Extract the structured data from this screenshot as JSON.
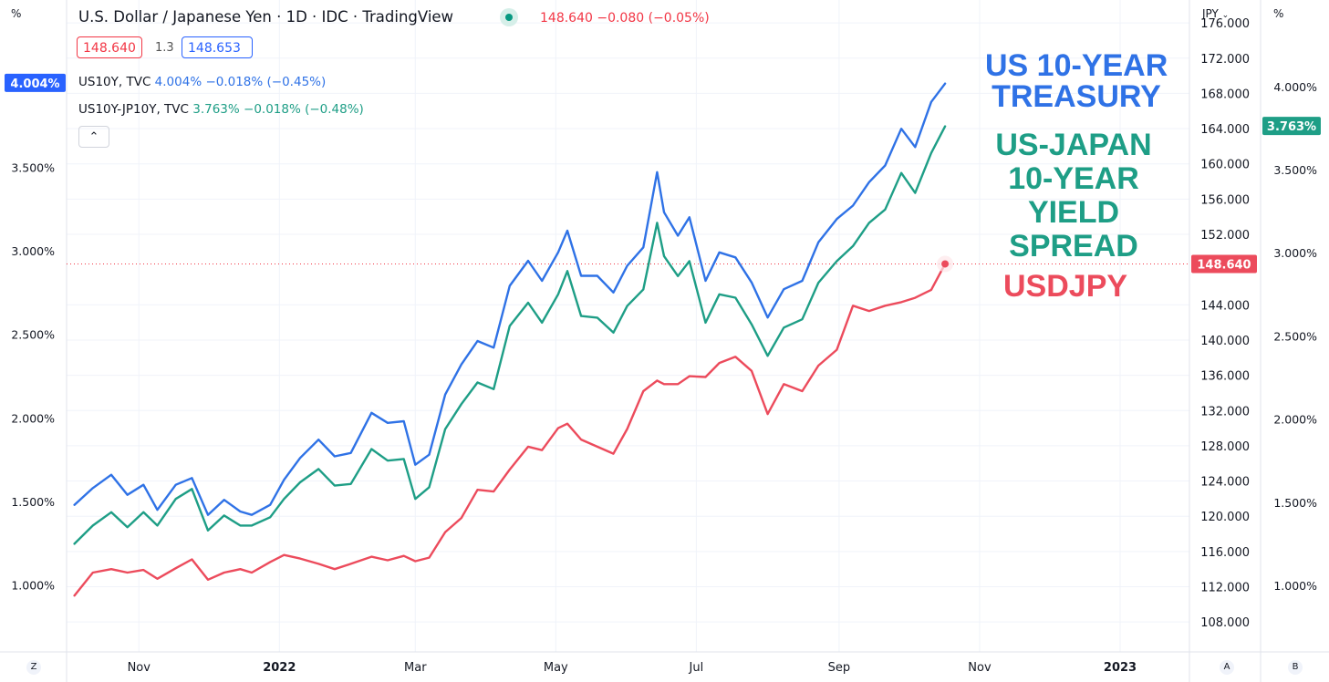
{
  "header": {
    "title": "U.S. Dollar / Japanese Yen · 1D · IDC · TradingView",
    "quote": "148.640  −0.080 (−0.05%)",
    "bid": "148.640",
    "spread": "1.3",
    "ask": "148.653",
    "collapse_glyph": "⌃"
  },
  "symbols": [
    {
      "name": "US10Y, TVC",
      "quote": "4.004%  −0.018% (−0.45%)",
      "color": "#2f72e6"
    },
    {
      "name": "US10Y-JP10Y, TVC",
      "quote": "3.763%  −0.018% (−0.48%)",
      "color": "#1e9e86"
    }
  ],
  "annotations": {
    "us10y_line1": "US 10-YEAR",
    "us10y_line2": "TREASURY",
    "spread_line1": "US-JAPAN",
    "spread_line2": "10-YEAR",
    "spread_line3": "YIELD",
    "spread_line4": "SPREAD",
    "usdjpy": "USDJPY"
  },
  "corners": {
    "top_left": "%",
    "top_right": "%",
    "jpy_label": "JPY",
    "z_button": "Z",
    "a_button": "A",
    "b_button": "B"
  },
  "chart_data": {
    "type": "line",
    "x_axis": {
      "ticks": [
        "Nov",
        "2022",
        "Mar",
        "May",
        "Jul",
        "Sep",
        "Nov",
        "2023"
      ]
    },
    "left_axis": {
      "label": "%",
      "ticks": [
        "1.000%",
        "1.500%",
        "2.000%",
        "2.500%",
        "3.000%",
        "3.500%"
      ],
      "ylim": [
        0.6,
        4.5
      ],
      "badge": "4.004%"
    },
    "middle_axis": {
      "label": "JPY",
      "ticks": [
        "108.000",
        "112.000",
        "116.000",
        "120.000",
        "124.000",
        "128.000",
        "132.000",
        "136.000",
        "140.000",
        "144.000",
        "152.000",
        "156.000",
        "160.000",
        "164.000",
        "168.000",
        "172.000",
        "176.000"
      ],
      "ylim": [
        104.6,
        178.6
      ],
      "badge": "148.640",
      "price_line": 148.64
    },
    "right_axis": {
      "label": "%",
      "ticks": [
        "1.000%",
        "1.500%",
        "2.000%",
        "2.500%",
        "3.000%",
        "3.500%",
        "4.000%"
      ],
      "ylim": [
        0.6,
        4.52
      ],
      "badge": "3.763%"
    },
    "series": [
      {
        "name": "US10Y, TVC",
        "axis": "left",
        "color": "#2f72e6",
        "points": [
          [
            "2021-10-04",
            1.48
          ],
          [
            "2021-10-12",
            1.58
          ],
          [
            "2021-10-20",
            1.66
          ],
          [
            "2021-10-27",
            1.54
          ],
          [
            "2021-11-03",
            1.6
          ],
          [
            "2021-11-09",
            1.45
          ],
          [
            "2021-11-17",
            1.6
          ],
          [
            "2021-11-24",
            1.64
          ],
          [
            "2021-12-01",
            1.42
          ],
          [
            "2021-12-08",
            1.51
          ],
          [
            "2021-12-15",
            1.44
          ],
          [
            "2021-12-20",
            1.42
          ],
          [
            "2021-12-28",
            1.48
          ],
          [
            "2022-01-03",
            1.63
          ],
          [
            "2022-01-10",
            1.76
          ],
          [
            "2022-01-18",
            1.87
          ],
          [
            "2022-01-25",
            1.77
          ],
          [
            "2022-02-01",
            1.79
          ],
          [
            "2022-02-10",
            2.03
          ],
          [
            "2022-02-17",
            1.97
          ],
          [
            "2022-02-24",
            1.98
          ],
          [
            "2022-03-01",
            1.72
          ],
          [
            "2022-03-07",
            1.78
          ],
          [
            "2022-03-14",
            2.14
          ],
          [
            "2022-03-21",
            2.32
          ],
          [
            "2022-03-28",
            2.46
          ],
          [
            "2022-04-04",
            2.42
          ],
          [
            "2022-04-11",
            2.79
          ],
          [
            "2022-04-19",
            2.94
          ],
          [
            "2022-04-25",
            2.82
          ],
          [
            "2022-05-02",
            2.99
          ],
          [
            "2022-05-06",
            3.12
          ],
          [
            "2022-05-12",
            2.85
          ],
          [
            "2022-05-19",
            2.85
          ],
          [
            "2022-05-26",
            2.75
          ],
          [
            "2022-06-01",
            2.91
          ],
          [
            "2022-06-08",
            3.02
          ],
          [
            "2022-06-14",
            3.47
          ],
          [
            "2022-06-17",
            3.23
          ],
          [
            "2022-06-23",
            3.09
          ],
          [
            "2022-06-28",
            3.2
          ],
          [
            "2022-07-05",
            2.82
          ],
          [
            "2022-07-11",
            2.99
          ],
          [
            "2022-07-18",
            2.96
          ],
          [
            "2022-07-25",
            2.81
          ],
          [
            "2022-08-01",
            2.6
          ],
          [
            "2022-08-08",
            2.77
          ],
          [
            "2022-08-16",
            2.82
          ],
          [
            "2022-08-23",
            3.05
          ],
          [
            "2022-08-31",
            3.19
          ],
          [
            "2022-09-07",
            3.27
          ],
          [
            "2022-09-14",
            3.41
          ],
          [
            "2022-09-21",
            3.51
          ],
          [
            "2022-09-28",
            3.73
          ],
          [
            "2022-10-04",
            3.62
          ],
          [
            "2022-10-11",
            3.89
          ],
          [
            "2022-10-17",
            4.0
          ]
        ]
      },
      {
        "name": "US10Y-JP10Y, TVC",
        "axis": "right",
        "color": "#1e9e86",
        "points": [
          [
            "2021-10-04",
            1.25
          ],
          [
            "2021-10-12",
            1.36
          ],
          [
            "2021-10-20",
            1.44
          ],
          [
            "2021-10-27",
            1.35
          ],
          [
            "2021-11-03",
            1.44
          ],
          [
            "2021-11-09",
            1.36
          ],
          [
            "2021-11-17",
            1.52
          ],
          [
            "2021-11-24",
            1.58
          ],
          [
            "2021-12-01",
            1.33
          ],
          [
            "2021-12-08",
            1.42
          ],
          [
            "2021-12-15",
            1.36
          ],
          [
            "2021-12-20",
            1.36
          ],
          [
            "2021-12-28",
            1.41
          ],
          [
            "2022-01-03",
            1.52
          ],
          [
            "2022-01-10",
            1.62
          ],
          [
            "2022-01-18",
            1.7
          ],
          [
            "2022-01-25",
            1.6
          ],
          [
            "2022-02-01",
            1.61
          ],
          [
            "2022-02-10",
            1.82
          ],
          [
            "2022-02-17",
            1.75
          ],
          [
            "2022-02-24",
            1.76
          ],
          [
            "2022-03-01",
            1.52
          ],
          [
            "2022-03-07",
            1.59
          ],
          [
            "2022-03-14",
            1.94
          ],
          [
            "2022-03-21",
            2.09
          ],
          [
            "2022-03-28",
            2.22
          ],
          [
            "2022-04-04",
            2.18
          ],
          [
            "2022-04-11",
            2.56
          ],
          [
            "2022-04-19",
            2.7
          ],
          [
            "2022-04-25",
            2.58
          ],
          [
            "2022-05-02",
            2.75
          ],
          [
            "2022-05-06",
            2.89
          ],
          [
            "2022-05-12",
            2.62
          ],
          [
            "2022-05-19",
            2.61
          ],
          [
            "2022-05-26",
            2.52
          ],
          [
            "2022-06-01",
            2.68
          ],
          [
            "2022-06-08",
            2.78
          ],
          [
            "2022-06-14",
            3.18
          ],
          [
            "2022-06-17",
            2.98
          ],
          [
            "2022-06-23",
            2.86
          ],
          [
            "2022-06-28",
            2.95
          ],
          [
            "2022-07-05",
            2.58
          ],
          [
            "2022-07-11",
            2.75
          ],
          [
            "2022-07-18",
            2.73
          ],
          [
            "2022-07-25",
            2.57
          ],
          [
            "2022-08-01",
            2.38
          ],
          [
            "2022-08-08",
            2.55
          ],
          [
            "2022-08-16",
            2.6
          ],
          [
            "2022-08-23",
            2.82
          ],
          [
            "2022-08-31",
            2.95
          ],
          [
            "2022-09-07",
            3.04
          ],
          [
            "2022-09-14",
            3.18
          ],
          [
            "2022-09-21",
            3.26
          ],
          [
            "2022-09-28",
            3.48
          ],
          [
            "2022-10-04",
            3.36
          ],
          [
            "2022-10-11",
            3.6
          ],
          [
            "2022-10-17",
            3.76
          ]
        ]
      },
      {
        "name": "USDJPY",
        "axis": "middle",
        "color": "#ec4b5c",
        "points": [
          [
            "2021-10-04",
            111.0
          ],
          [
            "2021-10-12",
            113.6
          ],
          [
            "2021-10-20",
            114.0
          ],
          [
            "2021-10-27",
            113.6
          ],
          [
            "2021-11-03",
            113.9
          ],
          [
            "2021-11-09",
            112.9
          ],
          [
            "2021-11-17",
            114.1
          ],
          [
            "2021-11-24",
            115.1
          ],
          [
            "2021-12-01",
            112.8
          ],
          [
            "2021-12-08",
            113.6
          ],
          [
            "2021-12-15",
            114.0
          ],
          [
            "2021-12-20",
            113.6
          ],
          [
            "2021-12-28",
            114.8
          ],
          [
            "2022-01-03",
            115.6
          ],
          [
            "2022-01-10",
            115.2
          ],
          [
            "2022-01-18",
            114.6
          ],
          [
            "2022-01-25",
            114.0
          ],
          [
            "2022-02-01",
            114.6
          ],
          [
            "2022-02-10",
            115.4
          ],
          [
            "2022-02-17",
            115.0
          ],
          [
            "2022-02-24",
            115.5
          ],
          [
            "2022-03-01",
            114.9
          ],
          [
            "2022-03-07",
            115.3
          ],
          [
            "2022-03-14",
            118.2
          ],
          [
            "2022-03-21",
            119.8
          ],
          [
            "2022-03-28",
            123.0
          ],
          [
            "2022-04-04",
            122.8
          ],
          [
            "2022-04-11",
            125.3
          ],
          [
            "2022-04-19",
            127.9
          ],
          [
            "2022-04-25",
            127.5
          ],
          [
            "2022-05-02",
            130.0
          ],
          [
            "2022-05-06",
            130.5
          ],
          [
            "2022-05-12",
            128.7
          ],
          [
            "2022-05-19",
            127.9
          ],
          [
            "2022-05-26",
            127.1
          ],
          [
            "2022-06-01",
            129.9
          ],
          [
            "2022-06-08",
            134.2
          ],
          [
            "2022-06-14",
            135.4
          ],
          [
            "2022-06-17",
            135.0
          ],
          [
            "2022-06-23",
            135.0
          ],
          [
            "2022-06-28",
            135.9
          ],
          [
            "2022-07-05",
            135.8
          ],
          [
            "2022-07-11",
            137.4
          ],
          [
            "2022-07-18",
            138.1
          ],
          [
            "2022-07-25",
            136.5
          ],
          [
            "2022-08-01",
            131.6
          ],
          [
            "2022-08-08",
            135.0
          ],
          [
            "2022-08-16",
            134.2
          ],
          [
            "2022-08-23",
            137.1
          ],
          [
            "2022-08-31",
            138.9
          ],
          [
            "2022-09-07",
            143.9
          ],
          [
            "2022-09-14",
            143.3
          ],
          [
            "2022-09-21",
            143.9
          ],
          [
            "2022-09-28",
            144.3
          ],
          [
            "2022-10-04",
            144.8
          ],
          [
            "2022-10-11",
            145.7
          ],
          [
            "2022-10-17",
            148.64
          ]
        ]
      }
    ]
  }
}
